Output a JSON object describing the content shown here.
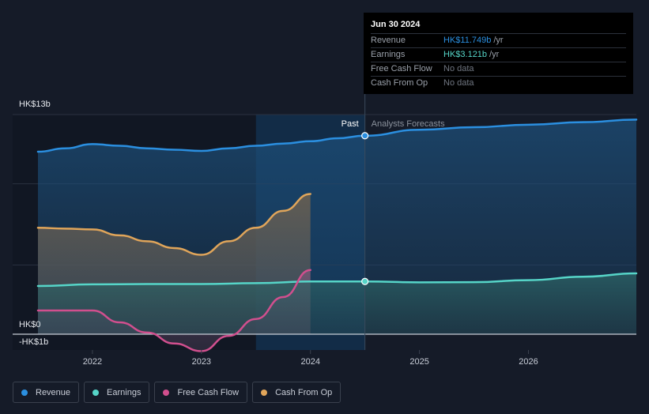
{
  "chart_data": {
    "type": "line",
    "x_range": [
      2021.5,
      2026.99
    ],
    "y_range": [
      -1.6,
      13
    ],
    "y_ticks": [
      {
        "label": "HK$13b",
        "value": 13
      },
      {
        "label": "HK$0",
        "value": 0
      },
      {
        "label": "-HK$1b",
        "value": -1
      }
    ],
    "x_ticks": [
      {
        "label": "2022",
        "value": 2022
      },
      {
        "label": "2023",
        "value": 2023
      },
      {
        "label": "2024",
        "value": 2024
      },
      {
        "label": "2025",
        "value": 2025
      },
      {
        "label": "2026",
        "value": 2026
      }
    ],
    "past_label": "Past",
    "forecast_label": "Analysts Forecasts",
    "divider_x": 2024.5,
    "shade_start_x": 2023.5,
    "series": [
      {
        "name": "Revenue",
        "color": "#2b8fe0",
        "points": [
          [
            2021.5,
            10.8
          ],
          [
            2021.75,
            11.0
          ],
          [
            2022.0,
            11.25
          ],
          [
            2022.25,
            11.15
          ],
          [
            2022.5,
            11.0
          ],
          [
            2022.75,
            10.92
          ],
          [
            2023.0,
            10.85
          ],
          [
            2023.25,
            11.0
          ],
          [
            2023.5,
            11.15
          ],
          [
            2023.75,
            11.28
          ],
          [
            2024.0,
            11.42
          ],
          [
            2024.25,
            11.6
          ],
          [
            2024.5,
            11.749
          ],
          [
            2025.0,
            12.1
          ],
          [
            2025.5,
            12.25
          ],
          [
            2026.0,
            12.4
          ],
          [
            2026.5,
            12.55
          ],
          [
            2026.99,
            12.7
          ]
        ]
      },
      {
        "name": "Earnings",
        "color": "#56d5c8",
        "points": [
          [
            2021.5,
            2.85
          ],
          [
            2022.0,
            2.95
          ],
          [
            2022.5,
            2.97
          ],
          [
            2023.0,
            2.97
          ],
          [
            2023.5,
            3.02
          ],
          [
            2024.0,
            3.12
          ],
          [
            2024.5,
            3.121
          ],
          [
            2025.0,
            3.07
          ],
          [
            2025.5,
            3.08
          ],
          [
            2026.0,
            3.2
          ],
          [
            2026.5,
            3.4
          ],
          [
            2026.99,
            3.6
          ]
        ]
      },
      {
        "name": "Free Cash Flow",
        "color": "#d14f8e",
        "points": [
          [
            2021.5,
            1.4
          ],
          [
            2022.0,
            1.4
          ],
          [
            2022.25,
            0.7
          ],
          [
            2022.5,
            0.1
          ],
          [
            2022.75,
            -0.55
          ],
          [
            2023.0,
            -1.0
          ],
          [
            2023.25,
            -0.1
          ],
          [
            2023.5,
            0.9
          ],
          [
            2023.75,
            2.2
          ],
          [
            2024.0,
            3.8
          ]
        ]
      },
      {
        "name": "Cash From Op",
        "color": "#e0a55a",
        "points": [
          [
            2021.5,
            6.3
          ],
          [
            2021.75,
            6.25
          ],
          [
            2022.0,
            6.2
          ],
          [
            2022.25,
            5.85
          ],
          [
            2022.5,
            5.5
          ],
          [
            2022.75,
            5.1
          ],
          [
            2023.0,
            4.7
          ],
          [
            2023.25,
            5.5
          ],
          [
            2023.5,
            6.3
          ],
          [
            2023.75,
            7.3
          ],
          [
            2024.0,
            8.3
          ]
        ]
      }
    ],
    "markers": [
      {
        "series": "Revenue",
        "x": 2024.5,
        "y": 11.749
      },
      {
        "series": "Earnings",
        "x": 2024.5,
        "y": 3.121
      }
    ]
  },
  "tooltip": {
    "date": "Jun 30 2024",
    "rows": [
      {
        "label": "Revenue",
        "value": "HK$11.749b",
        "unit": "/yr",
        "color": "#2b8fe0"
      },
      {
        "label": "Earnings",
        "value": "HK$3.121b",
        "unit": "/yr",
        "color": "#56d5c8"
      },
      {
        "label": "Free Cash Flow",
        "value": "No data",
        "unit": "",
        "color": "#6f7580"
      },
      {
        "label": "Cash From Op",
        "value": "No data",
        "unit": "",
        "color": "#6f7580"
      }
    ]
  },
  "legend": [
    {
      "label": "Revenue",
      "color": "#2b8fe0"
    },
    {
      "label": "Earnings",
      "color": "#56d5c8"
    },
    {
      "label": "Free Cash Flow",
      "color": "#d14f8e"
    },
    {
      "label": "Cash From Op",
      "color": "#e0a55a"
    }
  ]
}
